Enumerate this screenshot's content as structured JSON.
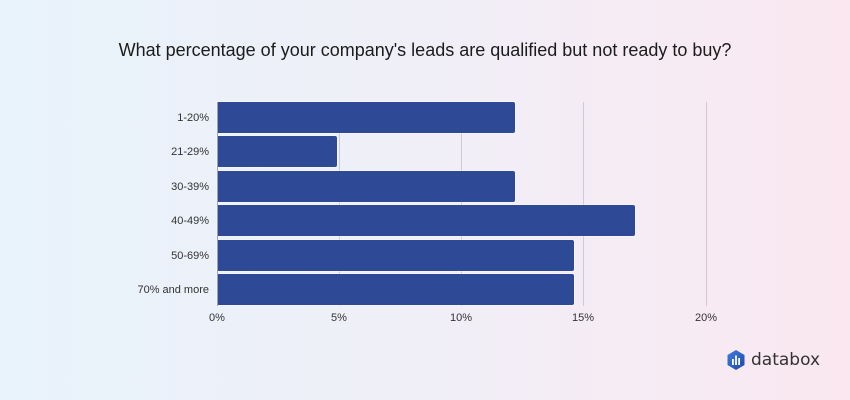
{
  "title": "What percentage of your company's leads are qualified but not ready to buy?",
  "brand": {
    "name": "databox",
    "icon": "databox-logo-icon"
  },
  "colors": {
    "bar": "#2e4a97",
    "gridline": "#cfcbd4",
    "text": "#333333"
  },
  "axis": {
    "ticks": [
      "0%",
      "5%",
      "10%",
      "15%",
      "20%"
    ]
  },
  "chart_data": {
    "type": "bar",
    "orientation": "horizontal",
    "title": "What percentage of your company's leads are qualified but not ready to buy?",
    "categories": [
      "1-20%",
      "21-29%",
      "30-39%",
      "40-49%",
      "50-69%",
      "70% and more"
    ],
    "values": [
      12.2,
      4.9,
      12.2,
      17.1,
      14.6,
      14.6
    ],
    "unit": "%",
    "xlabel": "",
    "ylabel": "",
    "xlim": [
      0,
      20
    ],
    "xticks": [
      "0%",
      "5%",
      "10%",
      "15%",
      "20%"
    ],
    "grid": "vertical",
    "legend": null
  }
}
